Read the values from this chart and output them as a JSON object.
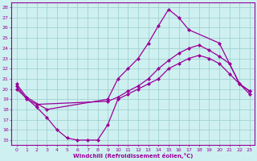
{
  "xlabel": "Windchill (Refroidissement éolien,°C)",
  "bg_color": "#cff0f0",
  "grid_color": "#99cccc",
  "line_color": "#990099",
  "xlim": [
    -0.5,
    23.5
  ],
  "ylim": [
    14.5,
    28.5
  ],
  "xticks": [
    0,
    1,
    2,
    3,
    4,
    5,
    6,
    7,
    8,
    9,
    10,
    11,
    12,
    13,
    14,
    15,
    16,
    17,
    18,
    19,
    20,
    21,
    22,
    23
  ],
  "yticks": [
    15,
    16,
    17,
    18,
    19,
    20,
    21,
    22,
    23,
    24,
    25,
    26,
    27,
    28
  ],
  "line1_x": [
    0,
    1,
    3,
    9,
    10,
    11,
    12,
    13,
    14,
    15,
    16,
    17,
    20,
    22,
    23
  ],
  "line1_y": [
    20.5,
    19.2,
    18.0,
    19.0,
    21.0,
    22.0,
    23.0,
    24.5,
    26.2,
    27.8,
    27.0,
    25.8,
    24.5,
    20.5,
    19.5
  ],
  "line2_x": [
    0,
    1,
    2,
    9,
    10,
    11,
    12,
    13,
    14,
    15,
    16,
    17,
    18,
    19,
    20,
    21,
    22,
    23
  ],
  "line2_y": [
    20.3,
    19.0,
    18.5,
    18.8,
    19.2,
    19.8,
    20.3,
    21.0,
    22.0,
    22.8,
    23.5,
    24.0,
    24.3,
    23.8,
    23.2,
    22.5,
    20.5,
    19.8
  ],
  "line3_x": [
    0,
    2,
    3,
    4,
    5,
    6,
    7,
    8,
    9,
    10,
    11,
    12,
    13,
    14,
    15,
    16,
    17,
    18,
    19,
    20,
    21,
    22,
    23
  ],
  "line3_y": [
    20.0,
    18.2,
    17.2,
    16.0,
    15.2,
    15.0,
    15.0,
    15.0,
    16.5,
    19.0,
    19.5,
    20.0,
    20.5,
    21.0,
    22.0,
    22.5,
    23.0,
    23.3,
    23.0,
    22.5,
    21.5,
    20.5,
    19.8
  ]
}
